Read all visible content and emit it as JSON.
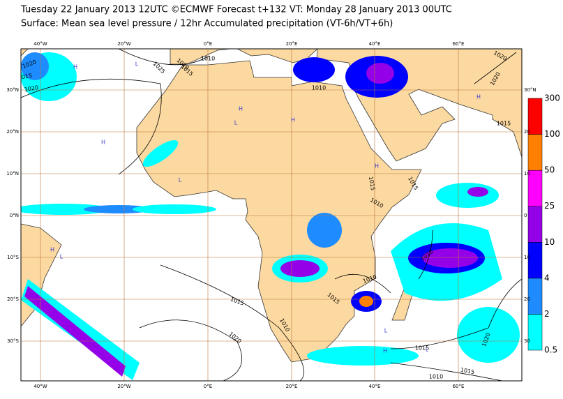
{
  "header": {
    "title": "Tuesday 22 January 2013 12UTC ©ECMWF Forecast t+132 VT: Monday 28 January 2013 00UTC",
    "subtitle": "Surface: Mean sea level pressure / 12hr Accumulated precipitation (VT-6h/VT+6h)"
  },
  "lon_labels": [
    "40°W",
    "20°W",
    "0°E",
    "20°E",
    "40°E",
    "60°E"
  ],
  "lat_labels_left": [
    "30°N",
    "20°N",
    "10°N",
    "0°N",
    "10°S",
    "20°S",
    "30°S"
  ],
  "lat_labels_right": [
    "30°N",
    "20",
    "10",
    "0",
    "10",
    "20",
    "30"
  ],
  "colorbar": {
    "levels": [
      0.5,
      2,
      4,
      10,
      25,
      50,
      100,
      300
    ],
    "colors": [
      "#00ffff",
      "#1e8cff",
      "#0000ff",
      "#9400e8",
      "#ff00ff",
      "#ff8000",
      "#ff0000"
    ]
  },
  "isobar_labels": [
    "1010",
    "1025",
    "1020",
    "1015",
    "1020",
    "1015",
    "1020",
    "1010",
    "1020",
    "1020",
    "1015",
    "1015",
    "1015",
    "1010",
    "1010",
    "1010",
    "1015",
    "1015",
    "1010",
    "1020",
    "1015",
    "1010",
    "1015",
    "1020"
  ],
  "pressure_centers": [
    "H",
    "L",
    "H",
    "H",
    "H",
    "L",
    "H",
    "L",
    "H",
    "L",
    "L",
    "H",
    "L",
    "H"
  ]
}
